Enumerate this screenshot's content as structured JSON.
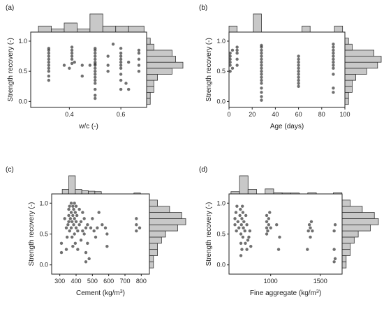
{
  "colors": {
    "point": "#333333",
    "hist_fill": "#c8c8c8",
    "hist_stroke": "#333333",
    "axis": "#222222"
  },
  "chart_data": [
    {
      "type": "scatter",
      "panel_label": "(a)",
      "xlabel": "w/c (-)",
      "ylabel": "Strength recovery (-)",
      "xlim": [
        0.25,
        0.7
      ],
      "ylim": [
        -0.1,
        1.15
      ],
      "xticks": [
        0.4,
        0.6
      ],
      "xtick_labels": [
        "0.4",
        "0.6"
      ],
      "yticks": [
        0,
        0.5,
        1
      ],
      "ytick_labels": [
        "0.0",
        "0.5",
        "1.0"
      ],
      "x_hist": {
        "edges": [
          0.28,
          0.33,
          0.38,
          0.43,
          0.48,
          0.53,
          0.58,
          0.63,
          0.69
        ],
        "counts": [
          2,
          1,
          3,
          1,
          6,
          2,
          2,
          2
        ]
      },
      "y_hist": {
        "edges": [
          -0.05,
          0.05,
          0.15,
          0.25,
          0.35,
          0.45,
          0.55,
          0.65,
          0.75,
          0.85,
          0.95,
          1.05
        ],
        "counts": [
          1,
          1,
          2,
          2,
          3,
          7,
          10,
          8,
          7,
          2,
          1
        ]
      },
      "points": [
        [
          0.32,
          0.35
        ],
        [
          0.32,
          0.42
        ],
        [
          0.32,
          0.5
        ],
        [
          0.32,
          0.55
        ],
        [
          0.32,
          0.6
        ],
        [
          0.32,
          0.65
        ],
        [
          0.32,
          0.7
        ],
        [
          0.32,
          0.75
        ],
        [
          0.32,
          0.8
        ],
        [
          0.32,
          0.85
        ],
        [
          0.32,
          0.88
        ],
        [
          0.38,
          0.6
        ],
        [
          0.4,
          0.55
        ],
        [
          0.41,
          0.63
        ],
        [
          0.41,
          0.7
        ],
        [
          0.41,
          0.75
        ],
        [
          0.41,
          0.8
        ],
        [
          0.41,
          0.85
        ],
        [
          0.41,
          0.9
        ],
        [
          0.42,
          0.65
        ],
        [
          0.45,
          0.42
        ],
        [
          0.45,
          0.6
        ],
        [
          0.48,
          0.6
        ],
        [
          0.5,
          0.05
        ],
        [
          0.5,
          0.1
        ],
        [
          0.5,
          0.2
        ],
        [
          0.5,
          0.3
        ],
        [
          0.5,
          0.35
        ],
        [
          0.5,
          0.4
        ],
        [
          0.5,
          0.45
        ],
        [
          0.5,
          0.5
        ],
        [
          0.5,
          0.55
        ],
        [
          0.5,
          0.6
        ],
        [
          0.5,
          0.62
        ],
        [
          0.5,
          0.65
        ],
        [
          0.5,
          0.7
        ],
        [
          0.5,
          0.75
        ],
        [
          0.5,
          0.8
        ],
        [
          0.5,
          0.85
        ],
        [
          0.5,
          0.88
        ],
        [
          0.55,
          0.5
        ],
        [
          0.55,
          0.6
        ],
        [
          0.55,
          0.75
        ],
        [
          0.57,
          0.95
        ],
        [
          0.6,
          0.2
        ],
        [
          0.6,
          0.35
        ],
        [
          0.6,
          0.45
        ],
        [
          0.6,
          0.55
        ],
        [
          0.6,
          0.6
        ],
        [
          0.6,
          0.65
        ],
        [
          0.6,
          0.7
        ],
        [
          0.6,
          0.75
        ],
        [
          0.6,
          0.8
        ],
        [
          0.6,
          0.88
        ],
        [
          0.62,
          0.3
        ],
        [
          0.63,
          0.2
        ],
        [
          0.63,
          0.65
        ],
        [
          0.67,
          0.5
        ],
        [
          0.67,
          0.6
        ],
        [
          0.67,
          0.7
        ],
        [
          0.67,
          0.8
        ],
        [
          0.67,
          0.85
        ]
      ]
    },
    {
      "type": "scatter",
      "panel_label": "(b)",
      "xlabel": "Age (days)",
      "ylabel": "Strength recovery (-)",
      "xlim": [
        0,
        100
      ],
      "ylim": [
        -0.1,
        1.15
      ],
      "xticks": [
        0,
        20,
        40,
        60,
        80,
        100
      ],
      "xtick_labels": [
        "0",
        "20",
        "40",
        "60",
        "80",
        "100"
      ],
      "yticks": [
        0,
        0.5,
        1
      ],
      "ytick_labels": [
        "0.0",
        "0.5",
        "1.0"
      ],
      "x_hist": {
        "edges": [
          0,
          7,
          14,
          21,
          28,
          35,
          42,
          49,
          56,
          63,
          70,
          77,
          84,
          91,
          98
        ],
        "counts": [
          1,
          0,
          0,
          3,
          0,
          0,
          0,
          0,
          0,
          1,
          0,
          0,
          0,
          1
        ]
      },
      "y_hist": {
        "edges": [
          -0.05,
          0.05,
          0.15,
          0.25,
          0.35,
          0.45,
          0.55,
          0.65,
          0.75,
          0.85,
          0.95,
          1.05
        ],
        "counts": [
          1,
          1,
          2,
          2,
          3,
          6,
          9,
          10,
          8,
          2,
          1
        ]
      },
      "points": [
        [
          1,
          0.5
        ],
        [
          1,
          0.6
        ],
        [
          1,
          0.65
        ],
        [
          1,
          0.7
        ],
        [
          1,
          0.75
        ],
        [
          1,
          0.8
        ],
        [
          3,
          0.85
        ],
        [
          3,
          0.55
        ],
        [
          7,
          0.6
        ],
        [
          7,
          0.7
        ],
        [
          7,
          0.8
        ],
        [
          7,
          0.85
        ],
        [
          7,
          0.9
        ],
        [
          28,
          0.02
        ],
        [
          28,
          0.08
        ],
        [
          28,
          0.15
        ],
        [
          28,
          0.22
        ],
        [
          28,
          0.3
        ],
        [
          28,
          0.35
        ],
        [
          28,
          0.4
        ],
        [
          28,
          0.45
        ],
        [
          28,
          0.5
        ],
        [
          28,
          0.55
        ],
        [
          28,
          0.6
        ],
        [
          28,
          0.65
        ],
        [
          28,
          0.7
        ],
        [
          28,
          0.75
        ],
        [
          28,
          0.8
        ],
        [
          28,
          0.85
        ],
        [
          28,
          0.9
        ],
        [
          28,
          0.93
        ],
        [
          60,
          0.25
        ],
        [
          60,
          0.3
        ],
        [
          60,
          0.35
        ],
        [
          60,
          0.4
        ],
        [
          60,
          0.45
        ],
        [
          60,
          0.5
        ],
        [
          60,
          0.55
        ],
        [
          60,
          0.6
        ],
        [
          60,
          0.65
        ],
        [
          60,
          0.7
        ],
        [
          60,
          0.75
        ],
        [
          90,
          0.15
        ],
        [
          90,
          0.22
        ],
        [
          90,
          0.45
        ],
        [
          90,
          0.55
        ],
        [
          90,
          0.6
        ],
        [
          90,
          0.65
        ],
        [
          90,
          0.7
        ],
        [
          90,
          0.75
        ],
        [
          90,
          0.8
        ],
        [
          90,
          0.85
        ],
        [
          90,
          0.9
        ],
        [
          90,
          0.95
        ]
      ]
    },
    {
      "type": "scatter",
      "panel_label": "(c)",
      "xlabel": "Cement (kg/m3)",
      "ylabel": "Strength recovery (-)",
      "xlim": [
        250,
        850
      ],
      "ylim": [
        -0.15,
        1.15
      ],
      "xticks": [
        300,
        400,
        500,
        600,
        700,
        800
      ],
      "xtick_labels": [
        "300",
        "400",
        "500",
        "600",
        "700",
        "800"
      ],
      "yticks": [
        0,
        0.5,
        1
      ],
      "ytick_labels": [
        "0.0",
        "0.5",
        "1.0"
      ],
      "x_hist": {
        "edges": [
          315,
          355,
          395,
          435,
          475,
          515,
          555,
          595,
          635,
          675,
          715,
          755,
          795
        ],
        "counts": [
          1,
          4,
          1,
          0.7,
          0.6,
          0.5,
          0,
          0,
          0,
          0,
          0,
          0.2
        ]
      },
      "y_hist": {
        "edges": [
          -0.05,
          0.05,
          0.15,
          0.25,
          0.35,
          0.45,
          0.55,
          0.65,
          0.75,
          0.85,
          0.95,
          1.05
        ],
        "counts": [
          1,
          1,
          2,
          2,
          3,
          4,
          7,
          9,
          8,
          5,
          2
        ]
      },
      "points": [
        [
          310,
          0.2
        ],
        [
          310,
          0.35
        ],
        [
          330,
          0.75
        ],
        [
          340,
          0.6
        ],
        [
          340,
          0.25
        ],
        [
          345,
          0.45
        ],
        [
          350,
          0.65
        ],
        [
          355,
          0.7
        ],
        [
          355,
          0.8
        ],
        [
          355,
          0.9
        ],
        [
          360,
          0.55
        ],
        [
          360,
          0.95
        ],
        [
          365,
          0.75
        ],
        [
          370,
          0.6
        ],
        [
          370,
          0.85
        ],
        [
          370,
          1.0
        ],
        [
          375,
          0.7
        ],
        [
          375,
          0.45
        ],
        [
          380,
          0.3
        ],
        [
          380,
          0.8
        ],
        [
          380,
          0.95
        ],
        [
          385,
          0.65
        ],
        [
          385,
          0.9
        ],
        [
          390,
          0.5
        ],
        [
          390,
          0.75
        ],
        [
          390,
          1.0
        ],
        [
          395,
          0.85
        ],
        [
          395,
          0.35
        ],
        [
          400,
          0.6
        ],
        [
          400,
          0.7
        ],
        [
          400,
          0.95
        ],
        [
          405,
          0.8
        ],
        [
          410,
          0.25
        ],
        [
          410,
          0.55
        ],
        [
          420,
          0.65
        ],
        [
          420,
          0.9
        ],
        [
          430,
          0.7
        ],
        [
          430,
          0.4
        ],
        [
          440,
          0.55
        ],
        [
          440,
          0.85
        ],
        [
          450,
          0.75
        ],
        [
          450,
          0.5
        ],
        [
          460,
          0.05
        ],
        [
          460,
          0.2
        ],
        [
          460,
          0.6
        ],
        [
          470,
          0.35
        ],
        [
          470,
          0.65
        ],
        [
          480,
          0.1
        ],
        [
          490,
          0.6
        ],
        [
          500,
          0.75
        ],
        [
          510,
          0.55
        ],
        [
          520,
          0.45
        ],
        [
          530,
          0.6
        ],
        [
          540,
          0.85
        ],
        [
          560,
          0.65
        ],
        [
          580,
          0.6
        ],
        [
          590,
          0.5
        ],
        [
          590,
          0.3
        ],
        [
          770,
          0.55
        ],
        [
          770,
          0.65
        ],
        [
          770,
          0.75
        ],
        [
          790,
          0.6
        ]
      ]
    },
    {
      "type": "scatter",
      "panel_label": "(d)",
      "xlabel": "Fine aggregate (kg/m3)",
      "ylabel": "Strength recovery (-)",
      "xlim": [
        580,
        1720
      ],
      "ylim": [
        -0.15,
        1.15
      ],
      "xticks": [
        1000,
        1500
      ],
      "xtick_labels": [
        "1000",
        "1500"
      ],
      "yticks": [
        0,
        0.5,
        1
      ],
      "ytick_labels": [
        "0.0",
        "0.5",
        "1.0"
      ],
      "x_hist": {
        "edges": [
          600,
          686,
          772,
          858,
          944,
          1030,
          1116,
          1202,
          1288,
          1374,
          1460,
          1546,
          1632,
          1718
        ],
        "counts": [
          0.5,
          4,
          1,
          0,
          1.1,
          0.25,
          0.2,
          0.2,
          0,
          0.25,
          0,
          0,
          0.25
        ]
      },
      "y_hist": {
        "edges": [
          -0.05,
          0.05,
          0.15,
          0.25,
          0.35,
          0.45,
          0.55,
          0.65,
          0.75,
          0.85,
          0.95,
          1.05
        ],
        "counts": [
          1,
          1,
          2,
          2,
          3,
          4,
          7,
          9,
          8,
          5,
          2
        ]
      },
      "points": [
        [
          640,
          0.65
        ],
        [
          640,
          0.75
        ],
        [
          650,
          0.85
        ],
        [
          655,
          0.55
        ],
        [
          660,
          0.95
        ],
        [
          670,
          0.7
        ],
        [
          680,
          0.6
        ],
        [
          690,
          0.8
        ],
        [
          695,
          0.9
        ],
        [
          700,
          0.15
        ],
        [
          700,
          0.35
        ],
        [
          700,
          0.5
        ],
        [
          705,
          0.65
        ],
        [
          710,
          0.25
        ],
        [
          710,
          0.75
        ],
        [
          715,
          0.95
        ],
        [
          720,
          0.85
        ],
        [
          720,
          0.45
        ],
        [
          725,
          0.6
        ],
        [
          730,
          0.7
        ],
        [
          740,
          0.55
        ],
        [
          745,
          0.35
        ],
        [
          750,
          0.8
        ],
        [
          760,
          0.25
        ],
        [
          760,
          0.65
        ],
        [
          770,
          0.4
        ],
        [
          780,
          0.45
        ],
        [
          790,
          0.55
        ],
        [
          800,
          0.3
        ],
        [
          960,
          0.5
        ],
        [
          960,
          0.6
        ],
        [
          960,
          0.7
        ],
        [
          960,
          0.8
        ],
        [
          970,
          0.55
        ],
        [
          980,
          0.65
        ],
        [
          980,
          0.75
        ],
        [
          990,
          0.85
        ],
        [
          1000,
          0.6
        ],
        [
          1060,
          0.65
        ],
        [
          1080,
          0.25
        ],
        [
          1090,
          0.45
        ],
        [
          1370,
          0.25
        ],
        [
          1380,
          0.55
        ],
        [
          1390,
          0.65
        ],
        [
          1400,
          0.45
        ],
        [
          1400,
          0.6
        ],
        [
          1410,
          0.7
        ],
        [
          1420,
          0.55
        ],
        [
          1640,
          0.05
        ],
        [
          1640,
          0.25
        ],
        [
          1640,
          0.55
        ],
        [
          1650,
          0.65
        ],
        [
          1650,
          0.1
        ]
      ]
    }
  ]
}
